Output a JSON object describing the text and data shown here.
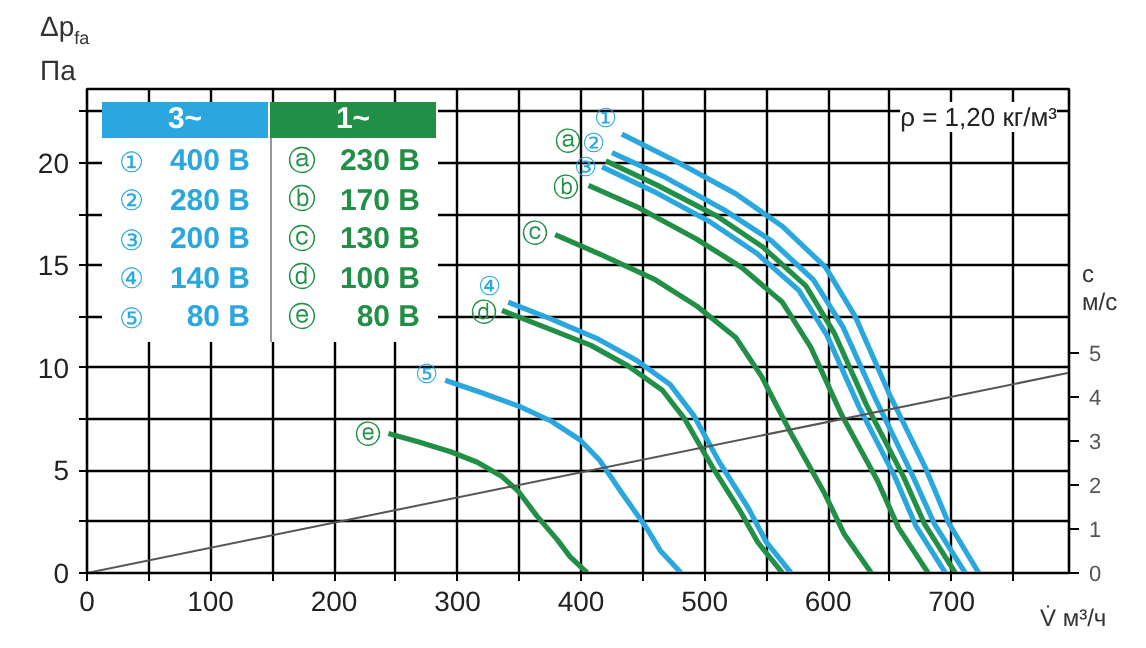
{
  "chart_data": {
    "type": "line",
    "xlabel": "V̇ м³/ч",
    "ylabel": "Δp$_{fa}$\nПа",
    "y2label": "c\nм/с",
    "annotations": [
      "3~",
      "1~",
      "ρ = 1,20 кг/м³",
      "400 B",
      "280 B",
      "200 B",
      "140 B",
      "80 B",
      "230 B",
      "170 B",
      "130 B",
      "100 B",
      "80 B"
    ],
    "xlim": [
      0,
      795
    ],
    "ylim": [
      0,
      23.6
    ],
    "y2lim": [
      0,
      11
    ],
    "xticks": [
      0,
      {
        "value": 50,
        "label": null
      },
      100,
      {
        "value": 150,
        "label": null
      },
      200,
      {
        "value": 250,
        "label": null
      },
      300,
      {
        "value": 350,
        "label": null
      },
      400,
      {
        "value": 450,
        "label": null
      },
      500,
      {
        "value": 550,
        "label": null
      },
      600,
      {
        "value": 650,
        "label": null
      },
      700,
      {
        "value": 750,
        "label": null
      }
    ],
    "yticks": [
      0,
      {
        "value": 2.5,
        "label": null
      },
      5,
      {
        "value": 7.5,
        "label": null
      },
      10,
      {
        "value": 12.5,
        "label": null
      },
      15,
      {
        "value": 17.5,
        "label": null
      },
      20,
      {
        "value": 22.5,
        "label": null
      }
    ],
    "y2ticks": [
      0,
      1,
      2,
      3,
      4,
      5
    ],
    "grid": true,
    "marker": "none",
    "line_style": "solid",
    "series": [
      {
        "name": "①",
        "color": "#2aa7df",
        "x": [
          433,
          476,
          525,
          563,
          598,
          622,
          649,
          679,
          697,
          722
        ],
        "values": [
          21.4,
          20.1,
          18.5,
          16.9,
          14.9,
          12.5,
          8.8,
          5.1,
          2.5,
          0
        ]
      },
      {
        "name": "②",
        "color": "#2aa7df",
        "x": [
          425,
          468,
          516,
          554,
          588,
          612,
          639,
          668,
          686,
          711
        ],
        "values": [
          20.5,
          19.3,
          17.7,
          16.2,
          14.3,
          12.0,
          8.4,
          4.8,
          2.4,
          0
        ]
      },
      {
        "name": "③",
        "color": "#2aa7df",
        "x": [
          417,
          459,
          505,
          542,
          576,
          599,
          625,
          654,
          671,
          695
        ],
        "values": [
          19.8,
          18.6,
          17.1,
          15.6,
          13.8,
          11.6,
          8.1,
          4.7,
          2.3,
          0
        ]
      },
      {
        "name": "④",
        "color": "#2aa7df",
        "x": [
          341,
          375,
          414,
          444,
          472,
          491,
          512,
          536,
          550,
          570
        ],
        "values": [
          13.2,
          12.4,
          11.4,
          10.4,
          9.2,
          7.7,
          5.4,
          3.1,
          1.5,
          0
        ]
      },
      {
        "name": "⑤",
        "color": "#2aa7df",
        "x": [
          290,
          319,
          351,
          376,
          399,
          415,
          433,
          453,
          464,
          481
        ],
        "values": [
          9.4,
          8.8,
          8.1,
          7.4,
          6.5,
          5.5,
          3.9,
          2.2,
          1.1,
          0
        ]
      },
      {
        "name": "ⓐ",
        "color": "#218f45",
        "x": [
          420,
          462,
          510,
          547,
          582,
          605,
          631,
          661,
          678,
          703
        ],
        "values": [
          20.1,
          18.9,
          17.4,
          15.9,
          14.0,
          11.7,
          8.2,
          4.7,
          2.4,
          0
        ]
      },
      {
        "name": "ⓑ",
        "color": "#218f45",
        "x": [
          406,
          447,
          493,
          530,
          563,
          586,
          611,
          640,
          657,
          681
        ],
        "values": [
          18.9,
          17.8,
          16.3,
          14.9,
          13.2,
          11.0,
          7.7,
          4.5,
          2.2,
          0
        ]
      },
      {
        "name": "ⓒ",
        "color": "#218f45",
        "x": [
          379,
          417,
          460,
          494,
          525,
          546,
          570,
          597,
          613,
          635
        ],
        "values": [
          16.5,
          15.5,
          14.3,
          13.0,
          11.5,
          9.6,
          6.8,
          3.9,
          1.9,
          0
        ]
      },
      {
        "name": "ⓓ",
        "color": "#218f45",
        "x": [
          336,
          370,
          408,
          438,
          466,
          484,
          506,
          529,
          543,
          563
        ],
        "values": [
          12.8,
          12.0,
          11.1,
          10.1,
          8.9,
          7.5,
          5.2,
          3.0,
          1.5,
          0
        ]
      },
      {
        "name": "ⓔ",
        "color": "#218f45",
        "x": [
          244,
          268,
          295,
          316,
          336,
          349,
          364,
          381,
          391,
          405
        ],
        "values": [
          6.8,
          6.4,
          5.9,
          5.4,
          4.7,
          4.0,
          2.8,
          1.6,
          0.8,
          0
        ]
      },
      {
        "color": "#555555",
        "axis": "y2",
        "x": [
          0,
          795
        ],
        "values": [
          0,
          4.55
        ]
      }
    ]
  }
}
